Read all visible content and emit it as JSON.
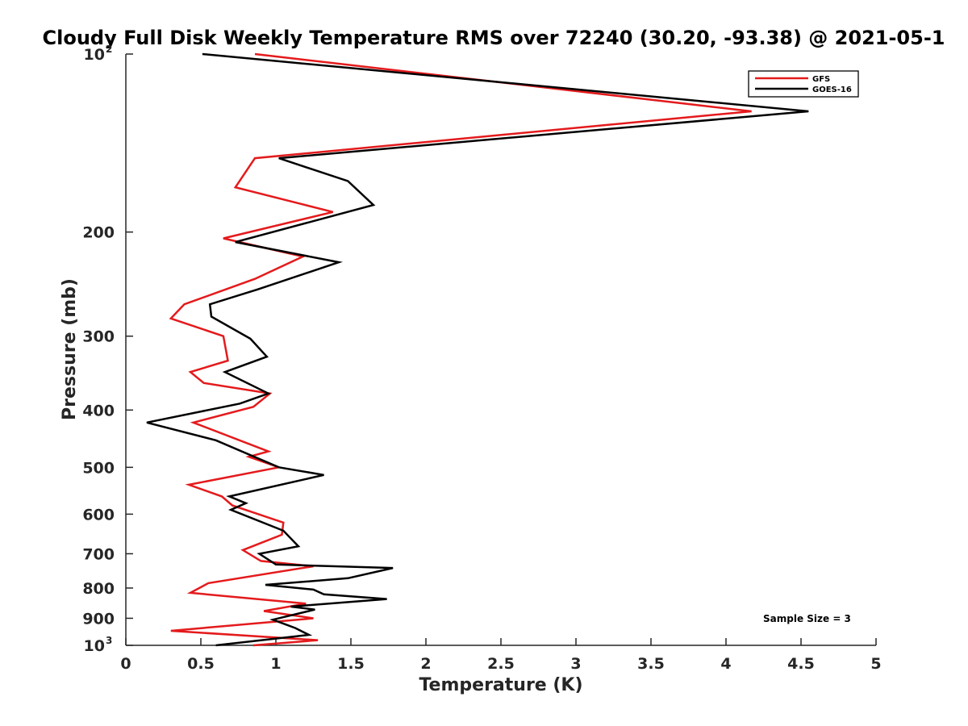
{
  "chart_data": {
    "type": "line",
    "title": "Cloudy Full Disk Weekly Temperature RMS over 72240 (30.20, -93.38) @ 2021-05-1",
    "xlabel": "Temperature (K)",
    "ylabel": "Pressure (mb)",
    "xlim": [
      0,
      5
    ],
    "ylim": [
      1000,
      100
    ],
    "yscale": "log",
    "grid": false,
    "legend_position": "top-right",
    "x_ticks": [
      "0",
      "0.5",
      "1",
      "1.5",
      "2",
      "2.5",
      "3",
      "3.5",
      "4",
      "4.5",
      "5"
    ],
    "y_ticks": [
      {
        "value": 100,
        "base": "10",
        "exp": "2"
      },
      {
        "value": 200,
        "label": "200"
      },
      {
        "value": 300,
        "label": "300"
      },
      {
        "value": 400,
        "label": "400"
      },
      {
        "value": 500,
        "label": "500"
      },
      {
        "value": 600,
        "label": "600"
      },
      {
        "value": 700,
        "label": "700"
      },
      {
        "value": 800,
        "label": "800"
      },
      {
        "value": 900,
        "label": "900"
      },
      {
        "value": 1000,
        "base": "10",
        "exp": "3"
      }
    ],
    "annotation": "Sample Size = 3",
    "series": [
      {
        "name": "GFS",
        "color": "#e41a1c",
        "points": [
          [
            0.86,
            100
          ],
          [
            4.17,
            125
          ],
          [
            0.86,
            150
          ],
          [
            0.73,
            168
          ],
          [
            1.38,
            185
          ],
          [
            0.65,
            205
          ],
          [
            1.18,
            220
          ],
          [
            0.86,
            240
          ],
          [
            0.39,
            265
          ],
          [
            0.3,
            280
          ],
          [
            0.65,
            300
          ],
          [
            0.68,
            330
          ],
          [
            0.43,
            345
          ],
          [
            0.52,
            360
          ],
          [
            0.96,
            375
          ],
          [
            0.85,
            395
          ],
          [
            0.45,
            420
          ],
          [
            0.95,
            470
          ],
          [
            0.82,
            480
          ],
          [
            1.02,
            500
          ],
          [
            0.42,
            535
          ],
          [
            0.64,
            560
          ],
          [
            0.71,
            580
          ],
          [
            1.05,
            620
          ],
          [
            1.04,
            650
          ],
          [
            0.78,
            690
          ],
          [
            0.9,
            720
          ],
          [
            1.25,
            735
          ],
          [
            0.55,
            785
          ],
          [
            0.43,
            815
          ],
          [
            1.2,
            850
          ],
          [
            0.92,
            875
          ],
          [
            1.25,
            900
          ],
          [
            0.3,
            945
          ],
          [
            1.28,
            980
          ],
          [
            0.85,
            1000
          ]
        ]
      },
      {
        "name": "GOES-16",
        "color": "#000000",
        "points": [
          [
            0.51,
            100
          ],
          [
            4.55,
            125
          ],
          [
            1.02,
            150
          ],
          [
            1.48,
            164
          ],
          [
            1.65,
            180
          ],
          [
            0.73,
            208
          ],
          [
            1.42,
            225
          ],
          [
            0.88,
            250
          ],
          [
            0.56,
            265
          ],
          [
            0.57,
            278
          ],
          [
            0.83,
            303
          ],
          [
            0.94,
            325
          ],
          [
            0.66,
            345
          ],
          [
            0.95,
            375
          ],
          [
            0.76,
            390
          ],
          [
            0.14,
            420
          ],
          [
            0.6,
            450
          ],
          [
            1.02,
            500
          ],
          [
            1.32,
            515
          ],
          [
            0.69,
            560
          ],
          [
            0.8,
            575
          ],
          [
            0.7,
            590
          ],
          [
            1.05,
            640
          ],
          [
            1.15,
            680
          ],
          [
            0.89,
            700
          ],
          [
            1.0,
            730
          ],
          [
            1.78,
            740
          ],
          [
            1.48,
            770
          ],
          [
            0.93,
            790
          ],
          [
            1.25,
            805
          ],
          [
            1.32,
            820
          ],
          [
            1.74,
            835
          ],
          [
            1.1,
            860
          ],
          [
            1.26,
            870
          ],
          [
            0.98,
            905
          ],
          [
            1.13,
            935
          ],
          [
            1.22,
            960
          ],
          [
            0.6,
            1000
          ]
        ]
      }
    ]
  }
}
